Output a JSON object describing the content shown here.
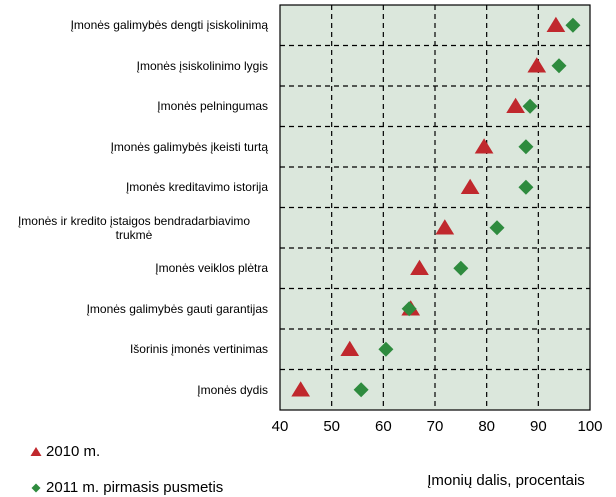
{
  "chart_data": {
    "type": "dot",
    "categories": [
      "Įmonės galimybės dengti įsiskolinimą",
      "Įmonės įsiskolinimo lygis",
      "Įmonės pelningumas",
      "Įmonės galimybės įkeisti turtą",
      "Įmonės kreditavimo istorija",
      "Įmonės ir kredito įstaigos bendradarbiavimo trukmė",
      "Įmonės veiklos plėtra",
      "Įmonės galimybės gauti garantijas",
      "Išorinis įmonės vertinimas",
      "Įmonės dydis"
    ],
    "series": [
      {
        "name": "2010 m.",
        "color": "#c0282d",
        "marker": "triangle",
        "values": [
          93.4,
          89.7,
          85.6,
          79.5,
          76.8,
          71.9,
          67,
          65.3,
          53.5,
          44
        ]
      },
      {
        "name": "2011 m. pirmasis pusmetis",
        "color": "#2e8b3e",
        "marker": "diamond",
        "values": [
          96.7,
          94,
          88.4,
          87.6,
          87.6,
          82,
          75,
          65,
          60.5,
          55.7
        ]
      }
    ],
    "xlabel": "Įmonių dalis, procentais",
    "xlim": [
      40,
      100
    ],
    "xticks": [
      40,
      50,
      60,
      70,
      80,
      90,
      100
    ],
    "grid": true
  }
}
